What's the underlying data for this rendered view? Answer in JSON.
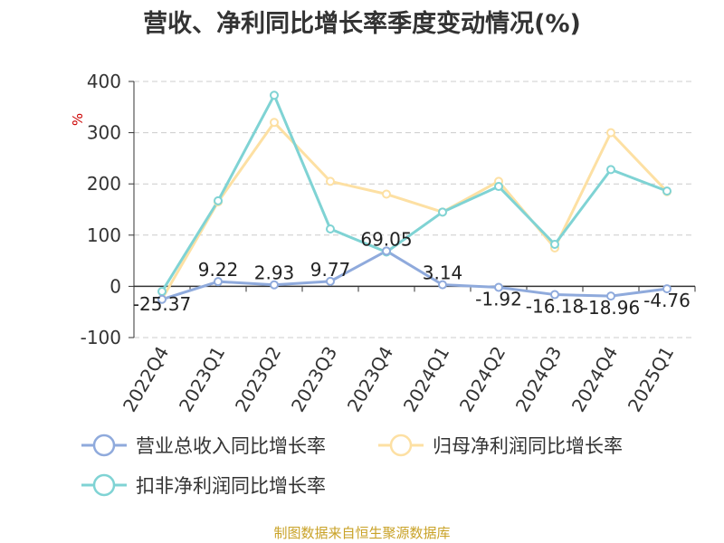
{
  "title": "营收、净利同比增长率季度变动情况(%)",
  "source_note": "制图数据来自恒生聚源数据库",
  "chart_data": {
    "type": "line",
    "title": "营收、净利同比增长率季度变动情况(%)",
    "ylabel": "%",
    "xlabel": "",
    "ylim": [
      -100,
      400
    ],
    "yticks": [
      -100,
      0,
      100,
      200,
      300,
      400
    ],
    "grid": true,
    "legend_position": "bottom",
    "categories": [
      "2022Q4",
      "2023Q1",
      "2023Q2",
      "2023Q3",
      "2023Q4",
      "2024Q1",
      "2024Q2",
      "2024Q3",
      "2024Q4",
      "2025Q1"
    ],
    "series": [
      {
        "name": "营业总收入同比增长率",
        "color": "#8faadc",
        "values": [
          -25.37,
          9.22,
          2.93,
          9.77,
          69.05,
          3.14,
          -1.92,
          -16.18,
          -18.96,
          -4.76
        ],
        "labels": [
          "-25.37",
          "9.22",
          "2.93",
          "9.77",
          "69.05",
          "3.14",
          "-1.92",
          "-16.18",
          "-18.96",
          "-4.76"
        ]
      },
      {
        "name": "归母净利润同比增长率",
        "color": "#fde0a3",
        "values": [
          -25,
          165,
          320,
          205,
          180,
          145,
          205,
          75,
          300,
          185
        ]
      },
      {
        "name": "扣非净利润同比增长率",
        "color": "#7fd3d4",
        "values": [
          -10,
          167,
          373,
          112,
          67,
          145,
          195,
          82,
          228,
          186
        ]
      }
    ]
  }
}
